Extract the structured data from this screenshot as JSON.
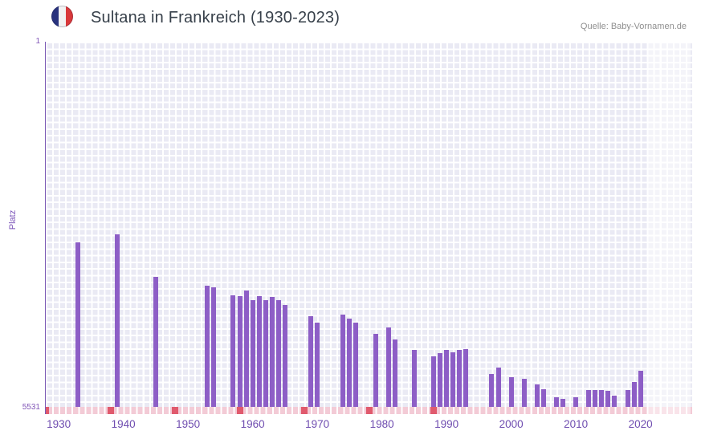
{
  "icons": {
    "title_flag": "france-flag-icon"
  },
  "chart_data": {
    "type": "bar",
    "title": "Sultana in Frankreich (1930-2023)",
    "source": "Quelle: Baby-Vornamen.de",
    "ylabel": "Platz",
    "y_axis": {
      "top_tick_label": "1",
      "bottom_tick_label": "5531",
      "min": 1,
      "max": 5531,
      "inverted": true
    },
    "x_axis": {
      "domain": [
        1928,
        2028
      ],
      "ticks": [
        1930,
        1940,
        1950,
        1960,
        1970,
        1980,
        1990,
        2000,
        2010,
        2020
      ]
    },
    "bars": [
      {
        "year": 1933,
        "rank": 3040
      },
      {
        "year": 1939,
        "rank": 2920
      },
      {
        "year": 1945,
        "rank": 3560
      },
      {
        "year": 1953,
        "rank": 3700
      },
      {
        "year": 1954,
        "rank": 3720
      },
      {
        "year": 1957,
        "rank": 3840
      },
      {
        "year": 1958,
        "rank": 3850
      },
      {
        "year": 1959,
        "rank": 3770
      },
      {
        "year": 1960,
        "rank": 3910
      },
      {
        "year": 1961,
        "rank": 3850
      },
      {
        "year": 1962,
        "rank": 3920
      },
      {
        "year": 1963,
        "rank": 3870
      },
      {
        "year": 1964,
        "rank": 3910
      },
      {
        "year": 1965,
        "rank": 3990
      },
      {
        "year": 1969,
        "rank": 4160
      },
      {
        "year": 1970,
        "rank": 4250
      },
      {
        "year": 1974,
        "rank": 4130
      },
      {
        "year": 1975,
        "rank": 4190
      },
      {
        "year": 1976,
        "rank": 4250
      },
      {
        "year": 1979,
        "rank": 4420
      },
      {
        "year": 1981,
        "rank": 4330
      },
      {
        "year": 1982,
        "rank": 4510
      },
      {
        "year": 1985,
        "rank": 4670
      },
      {
        "year": 1988,
        "rank": 4760
      },
      {
        "year": 1989,
        "rank": 4720
      },
      {
        "year": 1990,
        "rank": 4670
      },
      {
        "year": 1991,
        "rank": 4700
      },
      {
        "year": 1992,
        "rank": 4670
      },
      {
        "year": 1993,
        "rank": 4650
      },
      {
        "year": 1997,
        "rank": 5030
      },
      {
        "year": 1998,
        "rank": 4940
      },
      {
        "year": 2000,
        "rank": 5080
      },
      {
        "year": 2002,
        "rank": 5110
      },
      {
        "year": 2004,
        "rank": 5190
      },
      {
        "year": 2005,
        "rank": 5260
      },
      {
        "year": 2007,
        "rank": 5390
      },
      {
        "year": 2008,
        "rank": 5410
      },
      {
        "year": 2010,
        "rank": 5390
      },
      {
        "year": 2012,
        "rank": 5280
      },
      {
        "year": 2013,
        "rank": 5280
      },
      {
        "year": 2014,
        "rank": 5270
      },
      {
        "year": 2015,
        "rank": 5290
      },
      {
        "year": 2016,
        "rank": 5360
      },
      {
        "year": 2018,
        "rank": 5280
      },
      {
        "year": 2019,
        "rank": 5160
      },
      {
        "year": 2020,
        "rank": 4980
      }
    ],
    "no_rank_marker_years": [
      1928,
      1938,
      1948,
      1958,
      1968,
      1978,
      1988
    ],
    "highlight_band": {
      "from": 2021,
      "to": 2027.8
    },
    "colors": {
      "bar": "#8d5ec6",
      "plot_background": "#eaeaf4",
      "grid": "#ffffff",
      "strip": "#f3cbd6",
      "strip_marker": "#e05a6d",
      "axis_text": "#6f4db0",
      "title_text": "#37404a",
      "source_text": "#8f8f8f",
      "flag_blue": "#29337e",
      "flag_red": "#d9383a"
    },
    "legend": "none",
    "grid": true
  }
}
